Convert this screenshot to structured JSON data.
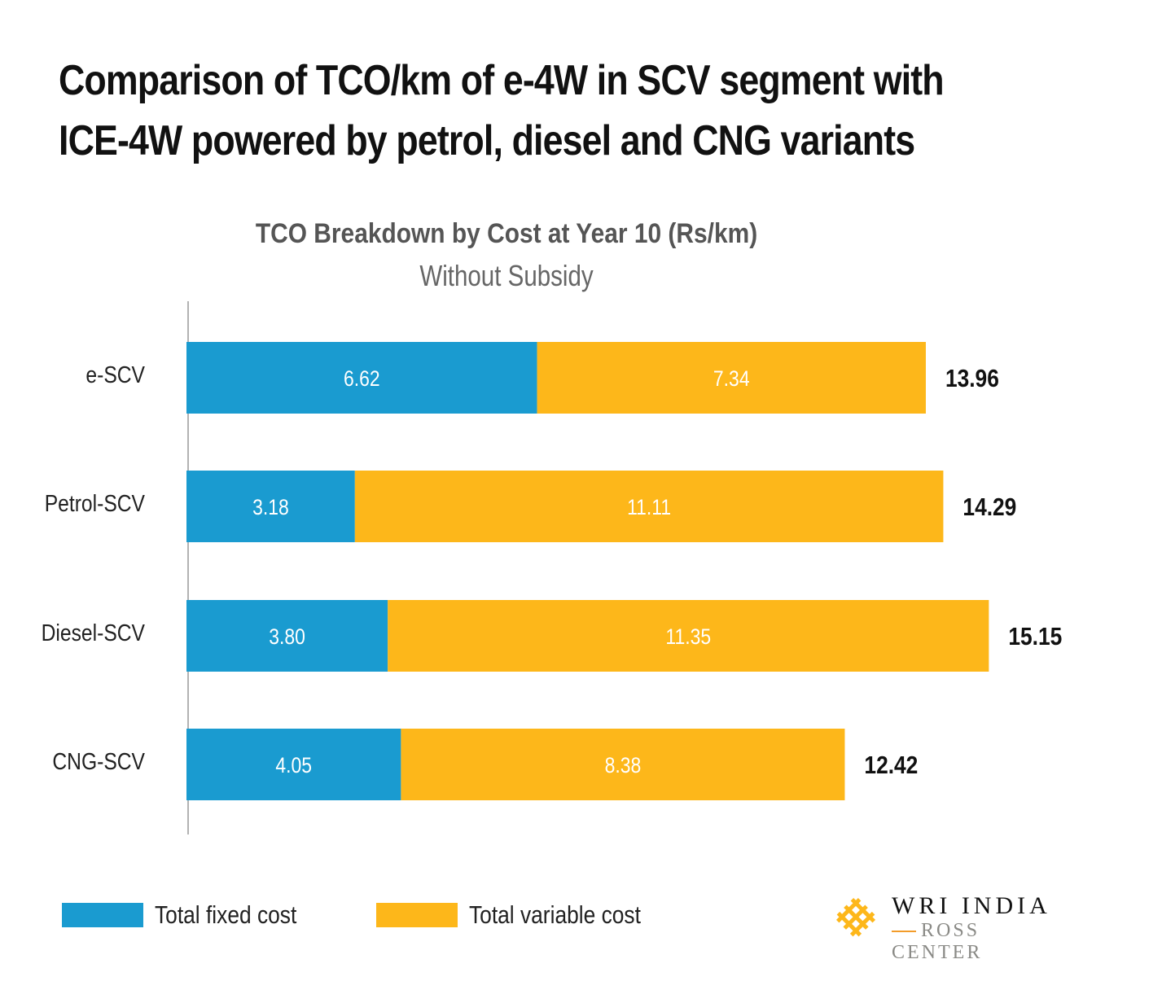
{
  "title_line1": "Comparison of TCO/km of e-4W in SCV segment with",
  "title_line2": "ICE-4W powered by petrol, diesel and CNG variants",
  "colors": {
    "fixed": "#1a9bd0",
    "variable": "#fdb71a"
  },
  "logo": {
    "line1": "WRI INDIA",
    "line2": "ROSS CENTER",
    "icon": "wri-knot-icon"
  },
  "chart_data": {
    "type": "bar",
    "orientation": "horizontal",
    "stacked": true,
    "title": "TCO Breakdown by Cost at Year 10 (Rs/km)",
    "subtitle": "Without Subsidy",
    "categories": [
      "e-SCV",
      "Petrol-SCV",
      "Diesel-SCV",
      "CNG-SCV"
    ],
    "series": [
      {
        "name": "Total fixed cost",
        "values": [
          6.62,
          3.18,
          3.8,
          4.05
        ],
        "labels": [
          "6.62",
          "3.18",
          "3.80",
          "4.05"
        ]
      },
      {
        "name": "Total variable cost",
        "values": [
          7.34,
          11.11,
          11.35,
          8.38
        ],
        "labels": [
          "7.34",
          "11.11",
          "11.35",
          "8.38"
        ]
      }
    ],
    "totals": [
      "13.96",
      "14.29",
      "15.15",
      "12.42"
    ],
    "xlim": [
      0,
      16
    ],
    "grid": false,
    "legend_position": "bottom-left"
  }
}
